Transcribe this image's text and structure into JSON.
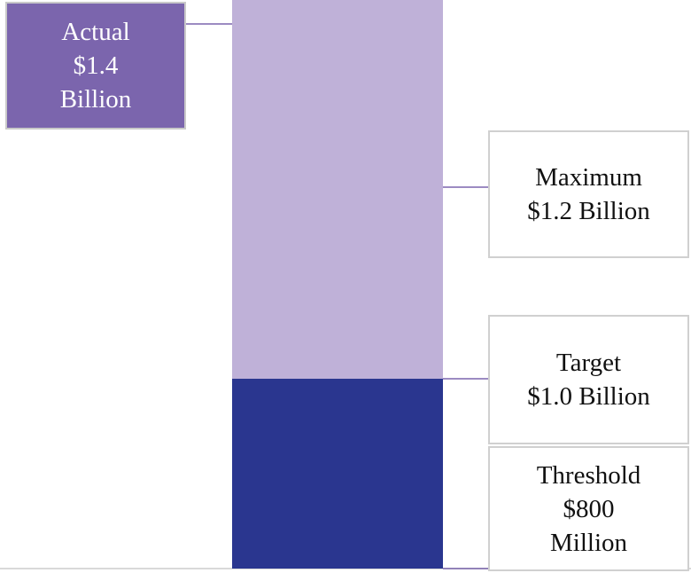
{
  "chart_data": {
    "type": "bar",
    "title": "",
    "xlabel": "",
    "ylabel": "",
    "segments": [
      {
        "name": "Threshold to Target",
        "from": 0.8,
        "to": 1.0,
        "color": "#2a368f"
      },
      {
        "name": "Target to Actual",
        "from": 1.0,
        "to": 1.4,
        "color": "#bfb1d8"
      }
    ],
    "markers": [
      {
        "key": "actual",
        "value": 1.4,
        "label": "Actual\n$1.4\nBillion",
        "fill": "#7b65ad"
      },
      {
        "key": "maximum",
        "value": 1.2,
        "label": "Maximum\n$1.2 Billion",
        "fill": "#ffffff"
      },
      {
        "key": "target",
        "value": 1.0,
        "label": "Target\n$1.0 Billion",
        "fill": "#ffffff"
      },
      {
        "key": "threshold",
        "value": 0.8,
        "label": "Threshold\n$800\nMillion",
        "fill": "#ffffff"
      }
    ],
    "units": "billions of dollars",
    "colors": {
      "leader": "#7b65ad",
      "baseline": "#d9d9d9"
    }
  }
}
